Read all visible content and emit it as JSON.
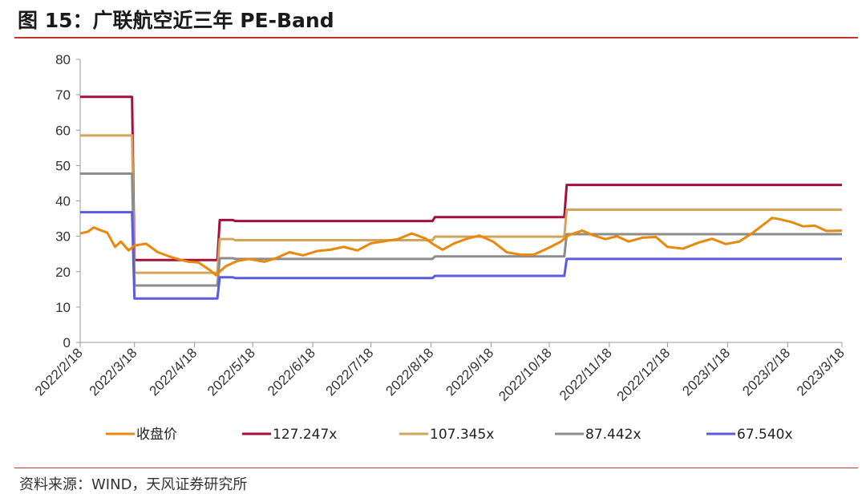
{
  "header": {
    "title": "图 15：广联航空近三年 PE-Band"
  },
  "footer": {
    "source": "资料来源：WIND，天风证券研究所"
  },
  "chart_data": {
    "type": "line",
    "title": "图 15：广联航空近三年 PE-Band",
    "ylim": [
      0,
      80
    ],
    "yticks": [
      0,
      10,
      20,
      30,
      40,
      50,
      60,
      70,
      80
    ],
    "xlim": [
      "2022-02-18",
      "2023-03-18"
    ],
    "xtick_labels": [
      "2022/2/18",
      "2022/3/18",
      "2022/4/18",
      "2022/5/18",
      "2022/6/18",
      "2022/7/18",
      "2022/8/18",
      "2022/9/18",
      "2022/10/18",
      "2022/11/18",
      "2022/12/18",
      "2023/1/18",
      "2023/2/18",
      "2023/3/18"
    ],
    "xticks": [
      "2022-02-18",
      "2022-03-18",
      "2022-04-18",
      "2022-05-18",
      "2022-06-18",
      "2022-07-18",
      "2022-08-18",
      "2022-09-18",
      "2022-10-18",
      "2022-11-18",
      "2022-12-18",
      "2023-01-18",
      "2023-02-18",
      "2023-03-18"
    ],
    "grid": false,
    "legend_position": "bottom",
    "series": [
      {
        "name": "收盘价",
        "color": "#E8890C",
        "style": "line",
        "points": [
          [
            "2022-02-18",
            30.8
          ],
          [
            "2022-02-22",
            31.3
          ],
          [
            "2022-02-25",
            32.5
          ],
          [
            "2022-03-01",
            31.6
          ],
          [
            "2022-03-04",
            31.0
          ],
          [
            "2022-03-08",
            27.0
          ],
          [
            "2022-03-11",
            28.5
          ],
          [
            "2022-03-15",
            26.0
          ],
          [
            "2022-03-18",
            27.4
          ],
          [
            "2022-03-24",
            27.9
          ],
          [
            "2022-03-30",
            25.5
          ],
          [
            "2022-04-05",
            24.3
          ],
          [
            "2022-04-11",
            23.3
          ],
          [
            "2022-04-15",
            22.8
          ],
          [
            "2022-04-20",
            22.6
          ],
          [
            "2022-04-26",
            20.4
          ],
          [
            "2022-04-29",
            19.0
          ],
          [
            "2022-05-04",
            21.5
          ],
          [
            "2022-05-10",
            23.0
          ],
          [
            "2022-05-16",
            23.6
          ],
          [
            "2022-05-24",
            22.8
          ],
          [
            "2022-05-30",
            23.8
          ],
          [
            "2022-06-06",
            25.5
          ],
          [
            "2022-06-13",
            24.6
          ],
          [
            "2022-06-20",
            25.8
          ],
          [
            "2022-06-27",
            26.2
          ],
          [
            "2022-07-04",
            27.0
          ],
          [
            "2022-07-11",
            26.0
          ],
          [
            "2022-07-18",
            28.0
          ],
          [
            "2022-07-25",
            28.6
          ],
          [
            "2022-08-01",
            29.2
          ],
          [
            "2022-08-08",
            30.8
          ],
          [
            "2022-08-15",
            29.4
          ],
          [
            "2022-08-19",
            27.8
          ],
          [
            "2022-08-24",
            26.2
          ],
          [
            "2022-08-30",
            28.0
          ],
          [
            "2022-09-06",
            29.4
          ],
          [
            "2022-09-12",
            30.2
          ],
          [
            "2022-09-19",
            28.5
          ],
          [
            "2022-09-26",
            25.5
          ],
          [
            "2022-10-03",
            24.8
          ],
          [
            "2022-10-10",
            24.8
          ],
          [
            "2022-10-18",
            26.8
          ],
          [
            "2022-10-24",
            28.5
          ],
          [
            "2022-10-28",
            30.3
          ],
          [
            "2022-11-04",
            31.6
          ],
          [
            "2022-11-10",
            30.2
          ],
          [
            "2022-11-16",
            29.2
          ],
          [
            "2022-11-22",
            30.0
          ],
          [
            "2022-11-28",
            28.5
          ],
          [
            "2022-12-05",
            29.6
          ],
          [
            "2022-12-12",
            29.8
          ],
          [
            "2022-12-18",
            27.0
          ],
          [
            "2022-12-26",
            26.5
          ],
          [
            "2023-01-03",
            28.2
          ],
          [
            "2023-01-10",
            29.3
          ],
          [
            "2023-01-17",
            27.8
          ],
          [
            "2023-01-24",
            28.5
          ],
          [
            "2023-01-31",
            31.0
          ],
          [
            "2023-02-06",
            33.5
          ],
          [
            "2023-02-10",
            35.2
          ],
          [
            "2023-02-14",
            34.8
          ],
          [
            "2023-02-20",
            34.0
          ],
          [
            "2023-02-26",
            32.8
          ],
          [
            "2023-03-04",
            33.0
          ],
          [
            "2023-03-10",
            31.5
          ],
          [
            "2023-03-18",
            31.6
          ]
        ]
      },
      {
        "name": "127.247x",
        "color": "#A50F3A",
        "style": "step",
        "points": [
          [
            "2022-02-18",
            69.4
          ],
          [
            "2022-03-18",
            23.3
          ],
          [
            "2022-05-01",
            34.6
          ],
          [
            "2022-05-09",
            34.3
          ],
          [
            "2022-08-20",
            35.4
          ],
          [
            "2022-10-27",
            44.5
          ],
          [
            "2023-03-18",
            44.5
          ]
        ]
      },
      {
        "name": "107.345x",
        "color": "#D4A35C",
        "style": "step",
        "points": [
          [
            "2022-02-18",
            58.5
          ],
          [
            "2022-03-18",
            19.7
          ],
          [
            "2022-05-01",
            29.2
          ],
          [
            "2022-05-09",
            28.9
          ],
          [
            "2022-08-20",
            29.9
          ],
          [
            "2022-10-27",
            37.5
          ],
          [
            "2023-03-18",
            37.5
          ]
        ]
      },
      {
        "name": "87.442x",
        "color": "#8C8C8C",
        "style": "step",
        "points": [
          [
            "2022-02-18",
            47.7
          ],
          [
            "2022-03-18",
            16.1
          ],
          [
            "2022-05-01",
            23.8
          ],
          [
            "2022-05-09",
            23.6
          ],
          [
            "2022-08-20",
            24.3
          ],
          [
            "2022-10-27",
            30.6
          ],
          [
            "2023-03-18",
            30.6
          ]
        ]
      },
      {
        "name": "67.540x",
        "color": "#5B5BE0",
        "style": "step",
        "points": [
          [
            "2022-02-18",
            36.8
          ],
          [
            "2022-03-18",
            12.4
          ],
          [
            "2022-05-01",
            18.4
          ],
          [
            "2022-05-09",
            18.2
          ],
          [
            "2022-08-20",
            18.8
          ],
          [
            "2022-10-27",
            23.6
          ],
          [
            "2023-03-18",
            23.6
          ]
        ]
      }
    ]
  }
}
